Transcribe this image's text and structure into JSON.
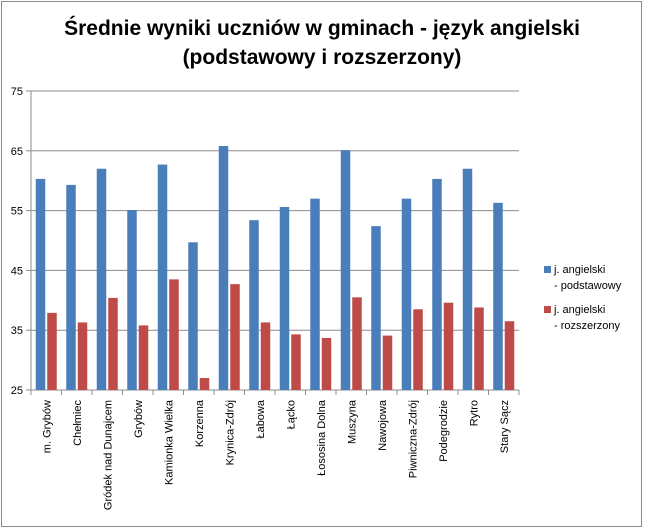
{
  "chart_data": {
    "type": "bar",
    "title": "Średnie wyniki uczniów w gminach - język angielski (podstawowy i rozszerzony)",
    "xlabel": "",
    "ylabel": "",
    "ylim": [
      25,
      75
    ],
    "yticks": [
      25,
      35,
      45,
      55,
      65,
      75
    ],
    "grid": true,
    "legend_position": "right",
    "categories": [
      "m. Grybów",
      "Chełmiec",
      "Gródek nad Dunajcem",
      "Grybów",
      "Kamionka Wielka",
      "Korzenna",
      "Krynica-Zdrój",
      "Łabowa",
      "Łącko",
      "Łososina Dolna",
      "Muszyna",
      "Nawojowa",
      "Piwniczna-Zdrój",
      "Podegrodzie",
      "Rytro",
      "Stary Sącz"
    ],
    "series": [
      {
        "name": "j. angielski - podstawowy",
        "legend_lines": [
          "j. angielski",
          "- podstawowy"
        ],
        "color": "#4a7ebb",
        "values": [
          60.3,
          59.3,
          62.0,
          55.1,
          62.7,
          49.7,
          65.8,
          53.4,
          55.6,
          57.0,
          65.1,
          52.4,
          57.0,
          60.3,
          62.0,
          56.3
        ]
      },
      {
        "name": "j. angielski - rozszerzony",
        "legend_lines": [
          "j. angielski",
          "- rozszerzony"
        ],
        "color": "#be4b48",
        "values": [
          37.9,
          36.3,
          40.4,
          35.8,
          43.5,
          27.0,
          42.7,
          36.3,
          34.3,
          33.7,
          40.5,
          34.1,
          38.5,
          39.6,
          38.8,
          36.5
        ]
      }
    ]
  }
}
